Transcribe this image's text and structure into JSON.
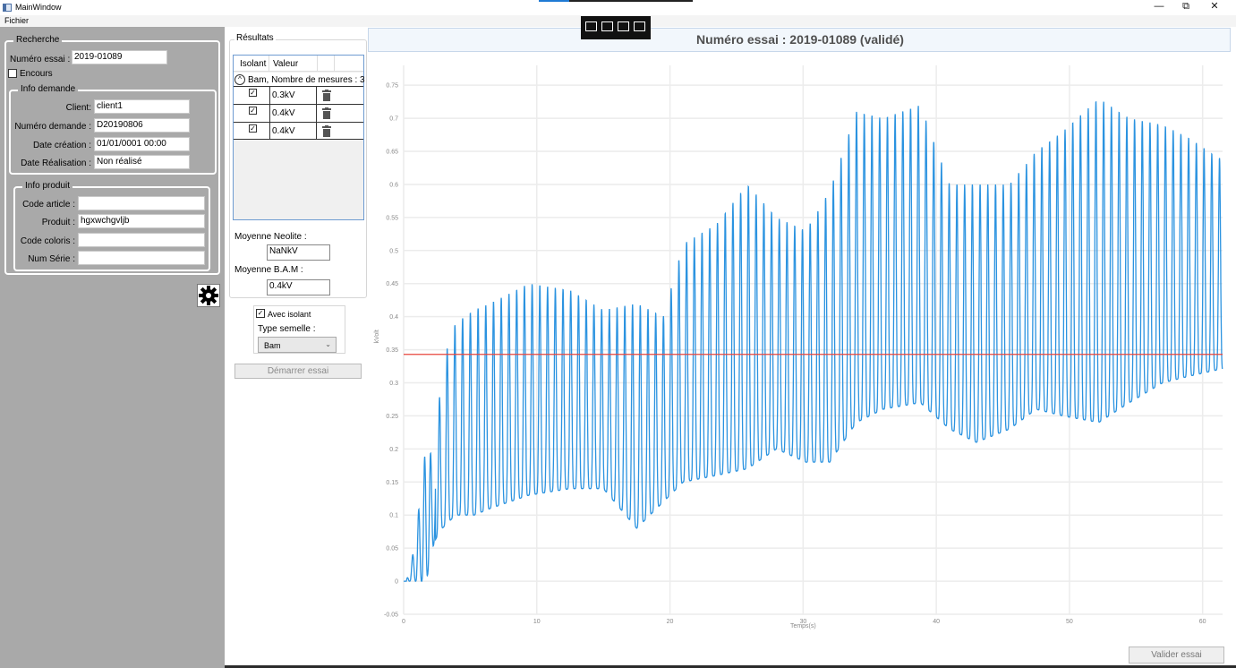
{
  "window": {
    "title": "MainWindow",
    "minimize": "—",
    "restore": "⧉",
    "close": "✕"
  },
  "menu": {
    "items": [
      "Fichier"
    ]
  },
  "recherche": {
    "title": "Recherche",
    "numero_essai_label": "Numéro essai :",
    "numero_essai_value": "2019-01089",
    "encours_label": "Encours",
    "encours_checked": false
  },
  "info_demande": {
    "title": "Info demande",
    "client_label": "Client:",
    "client_value": "client1",
    "numero_demande_label": "Numéro demande :",
    "numero_demande_value": "D20190806",
    "date_creation_label": "Date création :",
    "date_creation_value": "01/01/0001 00:00",
    "date_realisation_label": "Date Réalisation :",
    "date_realisation_value": "Non réalisé"
  },
  "info_produit": {
    "title": "Info produit",
    "code_article_label": "Code article :",
    "code_article_value": "",
    "produit_label": "Produit :",
    "produit_value": "hgxwchgvljb",
    "code_coloris_label": "Code coloris :",
    "code_coloris_value": "",
    "num_serie_label": "Num Série :",
    "num_serie_value": ""
  },
  "resultats": {
    "title": "Résultats",
    "columns": [
      "Isolant",
      "Valeur"
    ],
    "group_label": "Bam, Nombre de mesures : 3",
    "rows": [
      {
        "checked": true,
        "value": "0.3kV"
      },
      {
        "checked": true,
        "value": "0.4kV"
      },
      {
        "checked": true,
        "value": "0.4kV"
      }
    ],
    "moyenne_neolite_label": "Moyenne Neolite :",
    "moyenne_neolite_value": "NaNkV",
    "moyenne_bam_label": "Moyenne B.A.M :",
    "moyenne_bam_value": "0.4kV"
  },
  "options": {
    "avec_isolant_label": "Avec isolant",
    "avec_isolant_checked": true,
    "type_semelle_label": "Type semelle :",
    "type_semelle_value": "Bam"
  },
  "buttons": {
    "demarrer": "Démarrer essai",
    "valider": "Valider essai"
  },
  "header": {
    "text": "Numéro essai :  2019-01089  (validé)"
  },
  "colors": {
    "series": "#2b93e0",
    "threshold": "#e8453c",
    "left_panel": "#a9a9a9"
  },
  "chart_data": {
    "type": "line",
    "xlabel": "Temps(s)",
    "ylabel": "kVolt",
    "xlim": [
      0,
      61.5
    ],
    "ylim": [
      -0.05,
      0.78
    ],
    "x_ticks": [
      0,
      10,
      20,
      30,
      40,
      50,
      60
    ],
    "y_ticks": [
      -0.05,
      0,
      0.05,
      0.1,
      0.15,
      0.2,
      0.25,
      0.3,
      0.35,
      0.4,
      0.45,
      0.5,
      0.55,
      0.6,
      0.65,
      0.7,
      0.75
    ],
    "y_tick_labels": [
      "-0.05",
      "0",
      "0.05",
      "0.1",
      "0.15",
      "0.2",
      "0.25",
      "0.3",
      "0.35",
      "0.4",
      "0.45",
      "0.5",
      "0.55",
      "0.6",
      "0.65",
      "0.7",
      "0.75"
    ],
    "grid": true,
    "threshold": 0.343,
    "peak_period_s": 0.58,
    "peaks": [
      {
        "t": 0.2,
        "v": 0.0,
        "min": 0.0
      },
      {
        "t": 0.8,
        "v": 0.05,
        "min": 0.0
      },
      {
        "t": 1.7,
        "v": 0.21,
        "min": 0.0
      },
      {
        "t": 2.3,
        "v": 0.18,
        "min": 0.06
      },
      {
        "t": 2.9,
        "v": 0.33,
        "min": 0.08
      },
      {
        "t": 3.9,
        "v": 0.39,
        "min": 0.1
      },
      {
        "t": 5.3,
        "v": 0.41,
        "min": 0.1
      },
      {
        "t": 6.5,
        "v": 0.42,
        "min": 0.11
      },
      {
        "t": 9.4,
        "v": 0.45,
        "min": 0.13
      },
      {
        "t": 12.5,
        "v": 0.44,
        "min": 0.14
      },
      {
        "t": 15.0,
        "v": 0.41,
        "min": 0.14
      },
      {
        "t": 17.5,
        "v": 0.42,
        "min": 0.08
      },
      {
        "t": 19.5,
        "v": 0.4,
        "min": 0.12
      },
      {
        "t": 21.0,
        "v": 0.51,
        "min": 0.15
      },
      {
        "t": 23.5,
        "v": 0.54,
        "min": 0.16
      },
      {
        "t": 25.8,
        "v": 0.6,
        "min": 0.17
      },
      {
        "t": 28.0,
        "v": 0.55,
        "min": 0.2
      },
      {
        "t": 30.2,
        "v": 0.53,
        "min": 0.18
      },
      {
        "t": 32.0,
        "v": 0.59,
        "min": 0.18
      },
      {
        "t": 34.0,
        "v": 0.71,
        "min": 0.24
      },
      {
        "t": 36.0,
        "v": 0.7,
        "min": 0.26
      },
      {
        "t": 38.8,
        "v": 0.72,
        "min": 0.27
      },
      {
        "t": 41.0,
        "v": 0.6,
        "min": 0.23
      },
      {
        "t": 43.0,
        "v": 0.6,
        "min": 0.21
      },
      {
        "t": 45.5,
        "v": 0.6,
        "min": 0.23
      },
      {
        "t": 47.5,
        "v": 0.65,
        "min": 0.26
      },
      {
        "t": 49.5,
        "v": 0.68,
        "min": 0.25
      },
      {
        "t": 52.2,
        "v": 0.73,
        "min": 0.24
      },
      {
        "t": 54.5,
        "v": 0.7,
        "min": 0.27
      },
      {
        "t": 57.0,
        "v": 0.69,
        "min": 0.3
      },
      {
        "t": 59.0,
        "v": 0.67,
        "min": 0.31
      },
      {
        "t": 61.2,
        "v": 0.64,
        "min": 0.32
      }
    ]
  }
}
